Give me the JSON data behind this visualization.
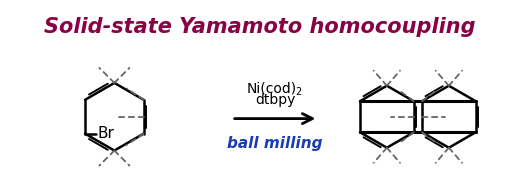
{
  "title": "Solid-state Yamamoto homocoupling",
  "title_color": "#8B0045",
  "title_fontsize": 15,
  "bg_color": "#FFFFFF",
  "reagent_line1": "Ni(cod)",
  "reagent_sub": "2",
  "reagent_line2": "dtbpy",
  "condition": "ball milling",
  "condition_color": "#1a3db5",
  "arrow_color": "#000000",
  "bond_color": "#000000",
  "dashed_color": "#666666",
  "br_label": "Br",
  "figsize": [
    5.2,
    1.94
  ],
  "dpi": 100
}
